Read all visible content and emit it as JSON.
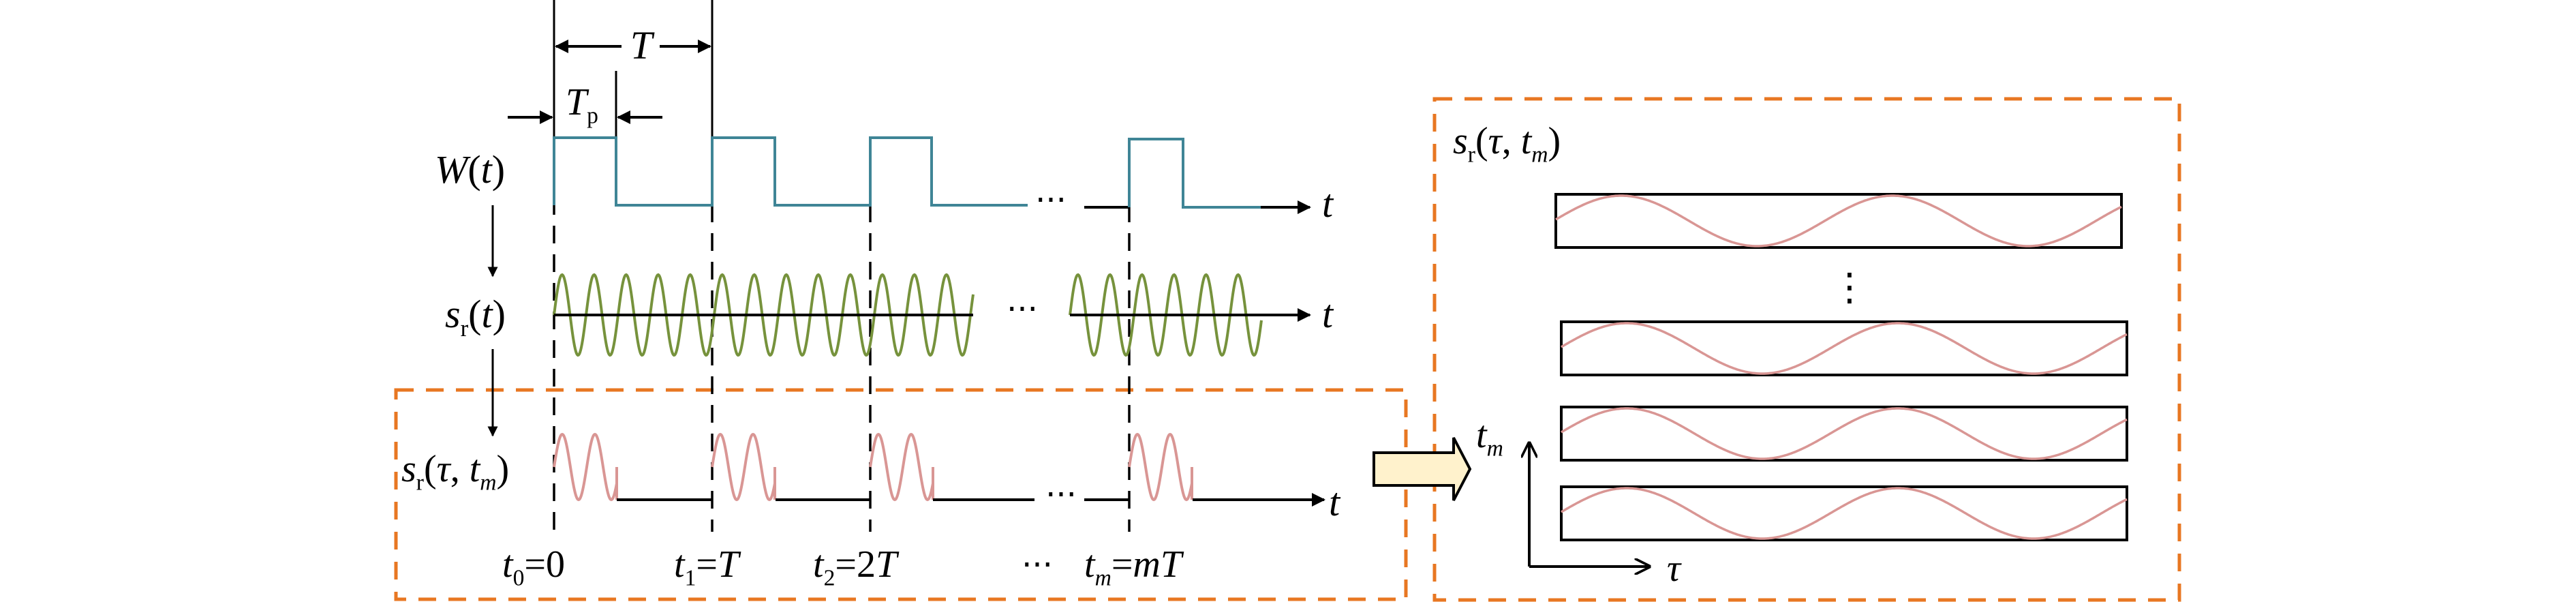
{
  "colors": {
    "window_wave": "#3f8596",
    "carrier_wave": "#76923c",
    "echo_wave": "#d99694",
    "dashed_box": "#e87722",
    "transfer_arrow_fill": "#fff2cc",
    "axis": "#000000"
  },
  "labels": {
    "period": [
      {
        "t": "T"
      }
    ],
    "pulse_width": [
      {
        "t": "T"
      },
      {
        "t": "p",
        "sub": true,
        "rm": true
      }
    ],
    "window": [
      {
        "t": "W"
      },
      {
        "t": "(",
        "rm": true
      },
      {
        "t": "t"
      },
      {
        "t": ")",
        "rm": true
      }
    ],
    "received": [
      {
        "t": "s"
      },
      {
        "t": "r",
        "sub": true,
        "rm": true
      },
      {
        "t": "(",
        "rm": true
      },
      {
        "t": "t"
      },
      {
        "t": ")",
        "rm": true
      }
    ],
    "received_2d_left": [
      {
        "t": "s"
      },
      {
        "t": "r",
        "sub": true,
        "rm": true
      },
      {
        "t": "(",
        "rm": true
      },
      {
        "t": "τ"
      },
      {
        "t": ", ",
        "rm": true
      },
      {
        "t": "t"
      },
      {
        "t": "m",
        "sub": true
      },
      {
        "t": ")",
        "rm": true
      }
    ],
    "received_2d_right": [
      {
        "t": "s"
      },
      {
        "t": "r",
        "sub": true,
        "rm": true
      },
      {
        "t": "(",
        "rm": true
      },
      {
        "t": "τ"
      },
      {
        "t": ", ",
        "rm": true
      },
      {
        "t": "t"
      },
      {
        "t": "m",
        "sub": true
      },
      {
        "t": ")",
        "rm": true
      }
    ],
    "t_axis_1": [
      {
        "t": "t"
      }
    ],
    "t_axis_2": [
      {
        "t": "t"
      }
    ],
    "t_axis_3": [
      {
        "t": "t"
      }
    ],
    "t0": [
      {
        "t": "t"
      },
      {
        "t": "0",
        "sub": true,
        "rm": true
      },
      {
        "t": "=0",
        "rm": true
      }
    ],
    "t1": [
      {
        "t": "t"
      },
      {
        "t": "1",
        "sub": true,
        "rm": true
      },
      {
        "t": "=",
        "rm": true
      },
      {
        "t": "T"
      }
    ],
    "t2": [
      {
        "t": "t"
      },
      {
        "t": "2",
        "sub": true,
        "rm": true
      },
      {
        "t": "=2",
        "rm": true
      },
      {
        "t": "T"
      }
    ],
    "tm": [
      {
        "t": "t"
      },
      {
        "t": "m",
        "sub": true
      },
      {
        "t": "=",
        "rm": true
      },
      {
        "t": "mT"
      }
    ],
    "slow_time_axis": [
      {
        "t": "t"
      },
      {
        "t": "m",
        "sub": true
      }
    ],
    "fast_time_axis": [
      {
        "t": "τ"
      }
    ]
  },
  "ellipsis": {
    "horizontal": "···",
    "vertical": "⋮"
  }
}
